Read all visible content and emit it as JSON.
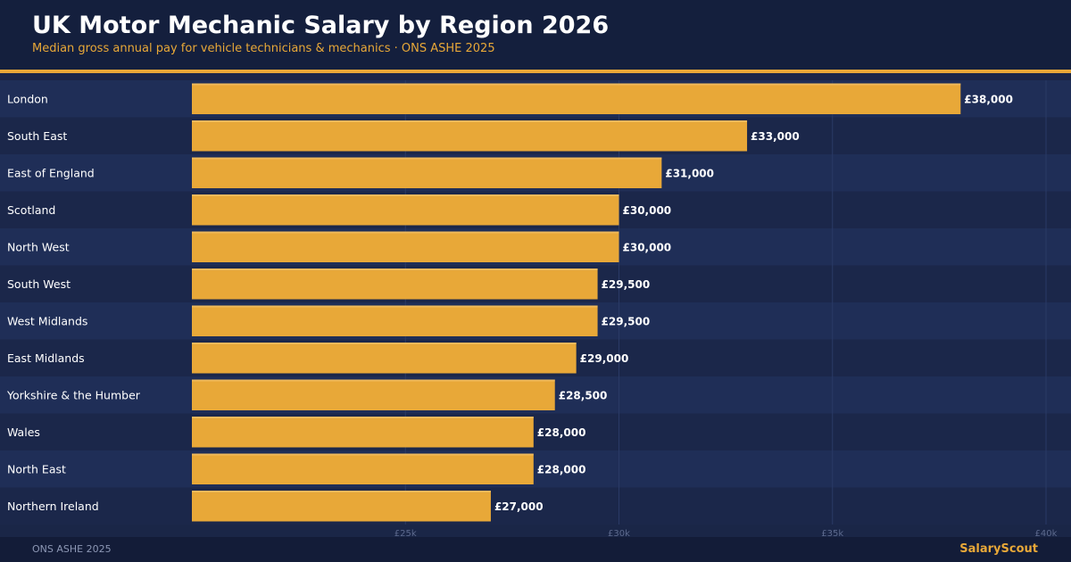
{
  "header": {
    "title": "UK Motor Mechanic Salary by Region 2026",
    "subtitle": "Median gross annual pay for vehicle technicians & mechanics · ONS ASHE 2025"
  },
  "footer": {
    "source": "ONS ASHE 2025",
    "brand": "SalaryScout"
  },
  "colors": {
    "background": "#1a2647",
    "header": "#141f3d",
    "accent": "#e8a838",
    "row_light": "#1f2e57",
    "row_dark": "#1b274a",
    "text": "#ffffff",
    "muted": "#8c97b4"
  },
  "chart_data": {
    "type": "bar",
    "orientation": "horizontal",
    "title": "UK Motor Mechanic Salary by Region 2026",
    "subtitle": "Median gross annual pay for vehicle technicians & mechanics · ONS ASHE 2025",
    "xlabel": "",
    "ylabel": "",
    "xlim": [
      20000,
      40000
    ],
    "grid": true,
    "categories": [
      "London",
      "South East",
      "East of England",
      "Scotland",
      "North West",
      "South West",
      "West Midlands",
      "East Midlands",
      "Yorkshire & the Humber",
      "Wales",
      "North East",
      "Northern Ireland"
    ],
    "values": [
      38000,
      33000,
      31000,
      30000,
      30000,
      29500,
      29500,
      29000,
      28500,
      28000,
      28000,
      27000
    ],
    "value_labels": [
      "£38,000",
      "£33,000",
      "£31,000",
      "£30,000",
      "£30,000",
      "£29,500",
      "£29,500",
      "£29,000",
      "£28,500",
      "£28,000",
      "£28,000",
      "£27,000"
    ],
    "x_ticks": [
      25000,
      30000,
      35000,
      40000
    ],
    "x_tick_labels": [
      "£25k",
      "£30k",
      "£35k",
      "£40k"
    ]
  }
}
